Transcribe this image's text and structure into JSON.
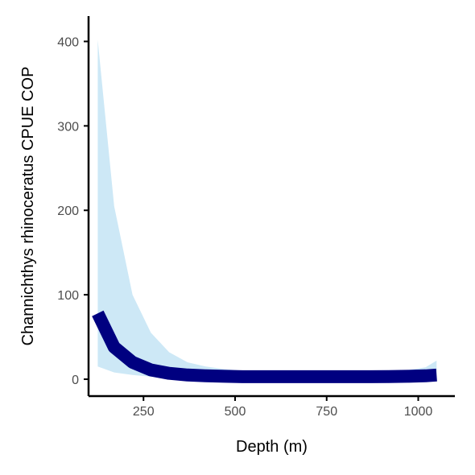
{
  "chart_data": {
    "type": "line",
    "title": "",
    "xlabel": "Depth (m)",
    "ylabel": "Channichthys rhinoceratus  CPUE COP",
    "xlim": [
      100,
      1100
    ],
    "ylim": [
      -20,
      430
    ],
    "xticks": [
      250,
      500,
      750,
      1000
    ],
    "yticks": [
      0,
      100,
      200,
      300,
      400
    ],
    "grid": false,
    "legend": "none",
    "series": [
      {
        "x": [
          125,
          170,
          220,
          270,
          320,
          370,
          420,
          470,
          520,
          570,
          620,
          670,
          720,
          770,
          820,
          870,
          920,
          970,
          1020,
          1050
        ],
        "values": [
          78,
          38,
          20,
          11,
          7,
          5,
          4,
          3.5,
          3,
          3,
          3,
          3,
          3,
          3,
          3,
          3,
          3.2,
          3.5,
          4,
          5
        ],
        "lower": [
          15,
          8,
          5,
          3,
          2,
          1.5,
          1,
          1,
          1,
          1,
          1,
          1,
          1,
          1,
          1,
          1,
          1,
          1,
          1,
          1
        ],
        "upper": [
          402,
          205,
          100,
          55,
          32,
          20,
          15,
          12,
          10,
          10,
          10,
          10,
          10,
          10,
          10,
          10,
          10,
          11,
          14,
          22
        ]
      }
    ],
    "colors": {
      "line": "#000080",
      "ribbon": "#cde8f6",
      "axis": "#000000",
      "tick_text": "#4d4d4d"
    }
  }
}
